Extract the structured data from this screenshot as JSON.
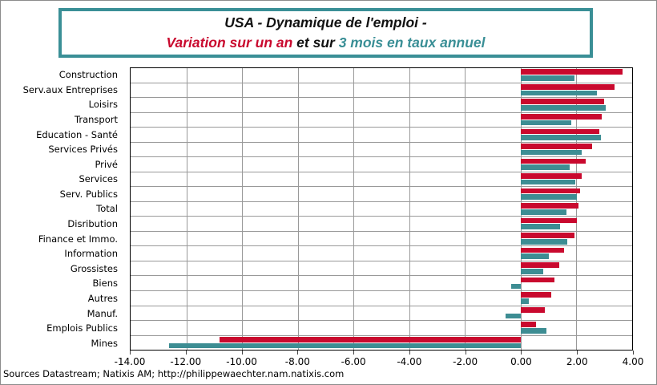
{
  "title": {
    "line1": "USA - Dynamique de l'emploi -",
    "line2_red": "Variation sur un an",
    "line2_mid": " et sur ",
    "line2_teal": "3 mois en taux annuel"
  },
  "footer": "Sources Datastream; Natixis AM; http://philippewaechter.nam.natixis.com",
  "colors": {
    "red": "#C9092E",
    "teal": "#3D8D93",
    "title_border": "#3A8F96",
    "grid": "#999999",
    "plot_border": "#000000",
    "outer_border": "#8C8C8C"
  },
  "chart_data": {
    "type": "bar",
    "orientation": "horizontal",
    "title": "USA - Dynamique de l'emploi - Variation sur un an et sur 3 mois en taux annuel",
    "xlabel": "",
    "ylabel": "",
    "grid": true,
    "legend_position": "in-title",
    "xlim": [
      -14,
      4
    ],
    "xticks": [
      -14,
      -12,
      -10,
      -8,
      -6,
      -4,
      -2,
      0,
      2,
      4
    ],
    "categories": [
      "Construction",
      "Serv.aux Entreprises",
      "Loisirs",
      "Transport",
      "Education - Santé",
      "Services Privés",
      "Privé",
      "Services",
      "Serv. Publics",
      "Total",
      "Disribution",
      "Finance et Immo.",
      "Information",
      "Grossistes",
      "Biens",
      "Autres",
      "Manuf.",
      "Emplois Publics",
      "Mines"
    ],
    "series": [
      {
        "name": "Variation sur un an",
        "color_key": "red",
        "values": [
          3.65,
          3.38,
          3.0,
          2.9,
          2.83,
          2.57,
          2.33,
          2.18,
          2.14,
          2.06,
          2.02,
          1.92,
          1.56,
          1.37,
          1.21,
          1.11,
          0.86,
          0.54,
          -10.82
        ]
      },
      {
        "name": "3 mois en taux annuel",
        "color_key": "teal",
        "values": [
          1.92,
          2.74,
          3.05,
          1.82,
          2.87,
          2.18,
          1.77,
          1.95,
          2.01,
          1.64,
          1.4,
          1.66,
          1.01,
          0.81,
          -0.35,
          0.3,
          -0.55,
          0.92,
          -12.62
        ]
      }
    ]
  }
}
